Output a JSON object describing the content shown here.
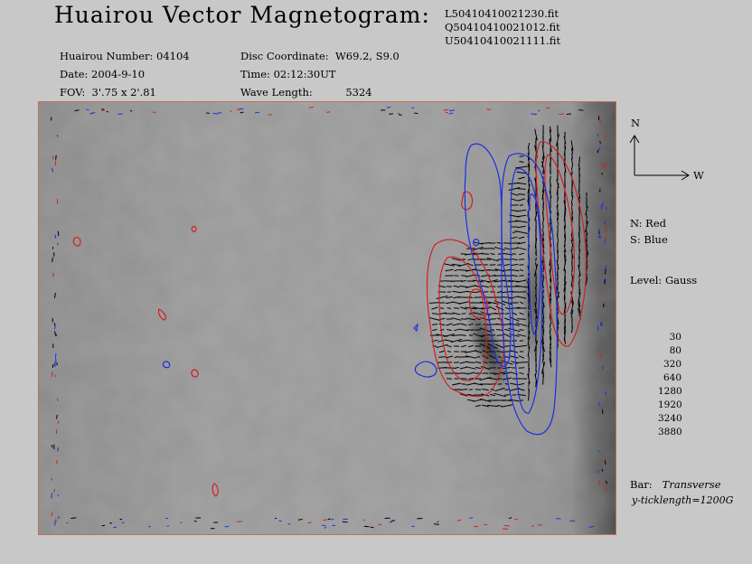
{
  "title": "Huairou Vector Magnetogram:",
  "files": [
    "L50410410021230.fit",
    "Q50410410021012.fit",
    "U50410410021111.fit"
  ],
  "meta_left": [
    {
      "label": "Huairou Number:",
      "value": "04104"
    },
    {
      "label": "Date:",
      "value": "2004-9-10"
    },
    {
      "label": "FOV:",
      "value": "3'.75 x 2'.81"
    }
  ],
  "meta_right": [
    {
      "label": "Disc Coordinate:",
      "value": "W69.2, S9.0"
    },
    {
      "label": "Time:",
      "value": "02:12:30UT"
    },
    {
      "label": "Wave Length:",
      "value": "5324"
    }
  ],
  "compass": {
    "north": "N",
    "west": "W"
  },
  "legend": {
    "north_polarity": "N: Red",
    "south_polarity": "S: Blue",
    "level": "Level: Gauss"
  },
  "levels": [
    "30",
    "80",
    "320",
    "640",
    "1280",
    "1920",
    "3240",
    "3880"
  ],
  "bar": {
    "label": "Bar:",
    "value": "Transverse"
  },
  "ticklength": "y-ticklength=1200G",
  "colors": {
    "north": "#d02020",
    "south": "#1c2ee0",
    "frame": "#c07050"
  }
}
